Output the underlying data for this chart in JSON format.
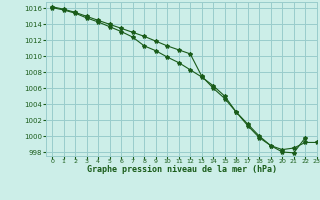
{
  "title": "Graphe pression niveau de la mer (hPa)",
  "xlim": [
    -0.5,
    23
  ],
  "ylim": [
    997.5,
    1016.8
  ],
  "yticks": [
    998,
    1000,
    1002,
    1004,
    1006,
    1008,
    1010,
    1012,
    1014,
    1016
  ],
  "xticks": [
    0,
    1,
    2,
    3,
    4,
    5,
    6,
    7,
    8,
    9,
    10,
    11,
    12,
    13,
    14,
    15,
    16,
    17,
    18,
    19,
    20,
    21,
    22,
    23
  ],
  "bg_color": "#cceee8",
  "grid_color": "#99cccc",
  "line_color": "#1a5c1a",
  "line1_x": [
    0,
    1,
    2,
    3,
    4,
    5,
    6,
    7,
    8,
    9,
    10,
    11,
    12,
    13,
    14,
    15,
    16,
    17,
    18,
    19,
    20,
    21,
    22
  ],
  "line1_y": [
    1016.2,
    1015.9,
    1015.5,
    1015.0,
    1014.5,
    1014.0,
    1013.5,
    1013.0,
    1012.5,
    1011.9,
    1011.3,
    1010.8,
    1010.3,
    1007.5,
    1006.0,
    1004.7,
    1003.0,
    1001.5,
    1000.0,
    998.8,
    998.0,
    997.9,
    999.8
  ],
  "line2_x": [
    0,
    1,
    2,
    3,
    4,
    5,
    6,
    7,
    8,
    9,
    10,
    11,
    12,
    13,
    14,
    15,
    16,
    17,
    18,
    19,
    20,
    21,
    22,
    23
  ],
  "line2_y": [
    1016.1,
    1015.8,
    1015.4,
    1014.8,
    1014.3,
    1013.7,
    1013.1,
    1012.4,
    1011.3,
    1010.7,
    1009.9,
    1009.2,
    1008.3,
    1007.4,
    1006.3,
    1005.0,
    1003.0,
    1001.3,
    999.8,
    998.8,
    998.3,
    998.5,
    999.2,
    999.2
  ]
}
